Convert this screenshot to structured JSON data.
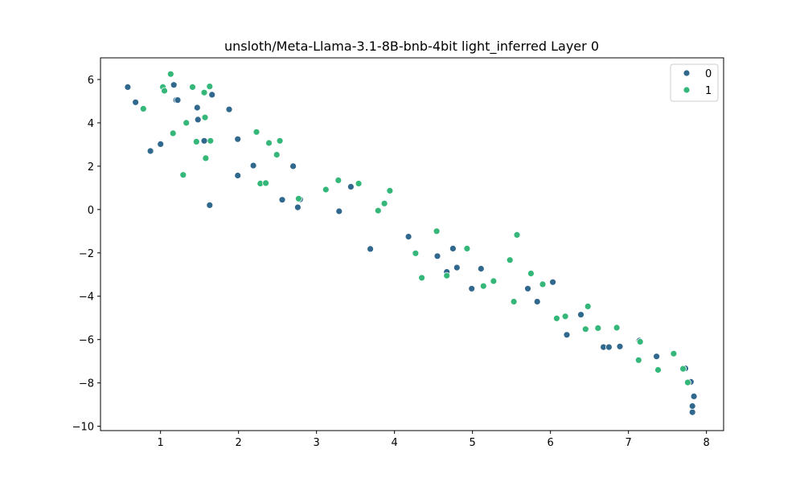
{
  "chart_data": {
    "type": "scatter",
    "title": "unsloth/Meta-Llama-3.1-8B-bnb-4bit light_inferred Layer 0",
    "xlabel": "",
    "ylabel": "",
    "xlim": [
      0.23,
      8.22
    ],
    "ylim": [
      -10.2,
      7.0
    ],
    "x_ticks": [
      1,
      2,
      3,
      4,
      5,
      6,
      7,
      8
    ],
    "y_ticks": [
      -10,
      -8,
      -6,
      -4,
      -2,
      0,
      2,
      4,
      6
    ],
    "x_tick_labels": [
      "1",
      "2",
      "3",
      "4",
      "5",
      "6",
      "7",
      "8"
    ],
    "y_tick_labels": [
      "−10",
      "−8",
      "−6",
      "−4",
      "−2",
      "0",
      "2",
      "4",
      "6"
    ],
    "grid": false,
    "legend_position": "top-right",
    "series": [
      {
        "name": "0",
        "color": "#31688e",
        "points": [
          [
            0.58,
            5.65
          ],
          [
            0.68,
            4.95
          ],
          [
            0.87,
            2.7
          ],
          [
            1.0,
            3.02
          ],
          [
            1.17,
            5.75
          ],
          [
            1.2,
            5.05
          ],
          [
            1.22,
            5.05
          ],
          [
            1.47,
            4.7
          ],
          [
            1.48,
            4.15
          ],
          [
            1.56,
            3.17
          ],
          [
            1.63,
            0.2
          ],
          [
            1.66,
            5.3
          ],
          [
            1.88,
            4.62
          ],
          [
            1.99,
            3.25
          ],
          [
            1.99,
            1.57
          ],
          [
            2.19,
            2.03
          ],
          [
            2.28,
            1.22
          ],
          [
            2.56,
            0.45
          ],
          [
            2.7,
            2.0
          ],
          [
            2.76,
            0.1
          ],
          [
            2.79,
            0.47
          ],
          [
            3.29,
            -0.08
          ],
          [
            3.44,
            1.05
          ],
          [
            3.69,
            -1.82
          ],
          [
            4.18,
            -1.25
          ],
          [
            4.55,
            -2.15
          ],
          [
            4.67,
            -2.88
          ],
          [
            4.75,
            -1.8
          ],
          [
            4.8,
            -2.68
          ],
          [
            4.99,
            -3.65
          ],
          [
            5.11,
            -2.73
          ],
          [
            5.71,
            -3.65
          ],
          [
            5.83,
            -4.25
          ],
          [
            6.03,
            -3.35
          ],
          [
            6.21,
            -5.78
          ],
          [
            6.39,
            -4.85
          ],
          [
            6.68,
            -6.35
          ],
          [
            6.75,
            -6.35
          ],
          [
            6.89,
            -6.32
          ],
          [
            7.14,
            -6.05
          ],
          [
            7.36,
            -6.78
          ],
          [
            7.73,
            -7.33
          ],
          [
            7.8,
            -7.95
          ],
          [
            7.82,
            -9.35
          ],
          [
            7.82,
            -9.07
          ],
          [
            7.84,
            -8.62
          ]
        ]
      },
      {
        "name": "1",
        "color": "#35b779",
        "points": [
          [
            0.78,
            4.65
          ],
          [
            1.03,
            5.65
          ],
          [
            1.05,
            5.48
          ],
          [
            1.13,
            6.25
          ],
          [
            1.16,
            3.52
          ],
          [
            1.29,
            1.6
          ],
          [
            1.33,
            4.0
          ],
          [
            1.41,
            5.65
          ],
          [
            1.46,
            3.13
          ],
          [
            1.56,
            5.4
          ],
          [
            1.57,
            4.25
          ],
          [
            1.58,
            2.37
          ],
          [
            1.63,
            5.68
          ],
          [
            1.64,
            3.17
          ],
          [
            2.23,
            3.58
          ],
          [
            2.28,
            1.2
          ],
          [
            2.35,
            1.22
          ],
          [
            2.39,
            3.07
          ],
          [
            2.49,
            2.53
          ],
          [
            2.53,
            3.17
          ],
          [
            2.77,
            0.5
          ],
          [
            3.12,
            0.92
          ],
          [
            3.28,
            1.35
          ],
          [
            3.54,
            1.2
          ],
          [
            3.79,
            -0.05
          ],
          [
            3.87,
            0.28
          ],
          [
            3.94,
            0.87
          ],
          [
            4.27,
            -2.02
          ],
          [
            4.35,
            -3.15
          ],
          [
            4.54,
            -1.0
          ],
          [
            4.67,
            -3.05
          ],
          [
            4.93,
            -1.8
          ],
          [
            5.14,
            -3.53
          ],
          [
            5.27,
            -3.3
          ],
          [
            5.48,
            -2.33
          ],
          [
            5.53,
            -4.25
          ],
          [
            5.57,
            -1.17
          ],
          [
            5.75,
            -2.95
          ],
          [
            5.9,
            -3.45
          ],
          [
            6.08,
            -5.02
          ],
          [
            6.19,
            -4.93
          ],
          [
            6.45,
            -5.52
          ],
          [
            6.48,
            -4.47
          ],
          [
            6.61,
            -5.47
          ],
          [
            6.85,
            -5.45
          ],
          [
            7.13,
            -6.95
          ],
          [
            7.15,
            -6.1
          ],
          [
            7.58,
            -6.65
          ],
          [
            7.38,
            -7.4
          ],
          [
            7.7,
            -7.35
          ],
          [
            7.76,
            -7.98
          ]
        ]
      }
    ]
  }
}
